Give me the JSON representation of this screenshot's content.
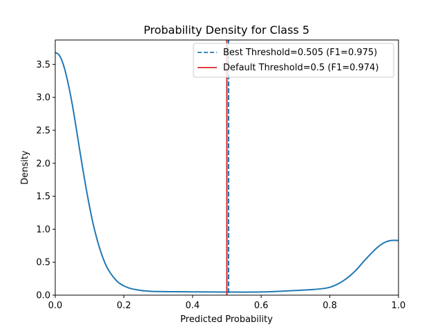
{
  "chart_data": {
    "type": "line",
    "title": "Probability Density for Class 5",
    "xlabel": "Predicted Probability",
    "ylabel": "Density",
    "xlim": [
      0.0,
      1.0
    ],
    "ylim": [
      0.0,
      3.87
    ],
    "xticks": [
      "0.0",
      "0.2",
      "0.4",
      "0.6",
      "0.8",
      "1.0"
    ],
    "yticks": [
      "0.0",
      "0.5",
      "1.0",
      "1.5",
      "2.0",
      "2.5",
      "3.0",
      "3.5"
    ],
    "grid": false,
    "legend_position": "top-right",
    "series": [
      {
        "color": "#1f77b4",
        "x": [
          0.0,
          0.01,
          0.02,
          0.03,
          0.04,
          0.05,
          0.06,
          0.07,
          0.08,
          0.09,
          0.1,
          0.11,
          0.12,
          0.13,
          0.14,
          0.15,
          0.16,
          0.17,
          0.18,
          0.19,
          0.2,
          0.22,
          0.24,
          0.26,
          0.28,
          0.3,
          0.35,
          0.4,
          0.45,
          0.5,
          0.55,
          0.6,
          0.65,
          0.7,
          0.75,
          0.78,
          0.8,
          0.82,
          0.84,
          0.86,
          0.88,
          0.9,
          0.92,
          0.94,
          0.96,
          0.98,
          1.0
        ],
        "y": [
          3.68,
          3.65,
          3.55,
          3.38,
          3.15,
          2.88,
          2.57,
          2.24,
          1.92,
          1.62,
          1.34,
          1.09,
          0.88,
          0.7,
          0.55,
          0.43,
          0.34,
          0.27,
          0.21,
          0.17,
          0.14,
          0.1,
          0.08,
          0.065,
          0.058,
          0.055,
          0.052,
          0.05,
          0.048,
          0.047,
          0.046,
          0.048,
          0.058,
          0.07,
          0.085,
          0.1,
          0.12,
          0.16,
          0.22,
          0.3,
          0.4,
          0.52,
          0.63,
          0.73,
          0.8,
          0.83,
          0.83
        ]
      }
    ],
    "vlines": [
      {
        "x": 0.505,
        "color": "#1f77b4",
        "style": "dashed",
        "label": "Best Threshold=0.505 (F1=0.975)"
      },
      {
        "x": 0.5,
        "color": "#d62728",
        "style": "solid",
        "label": "Default Threshold=0.5 (F1=0.974)"
      }
    ]
  }
}
